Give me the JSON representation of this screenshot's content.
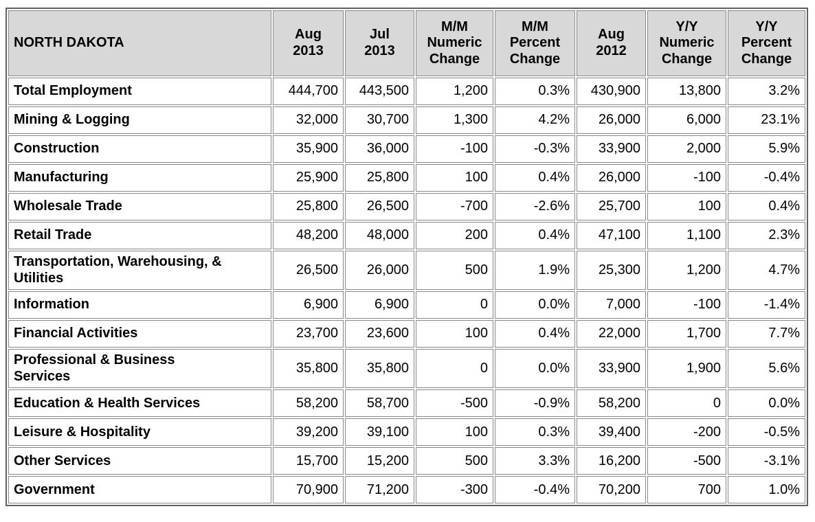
{
  "title": "NORTH DAKOTA",
  "colors": {
    "header_bg": "#d8d8d8",
    "cell_border": "#878787",
    "outer_border": "#606060",
    "row_bg": "#ffffff",
    "text": "#000000"
  },
  "header": {
    "cells": [
      "NORTH DAKOTA",
      "Aug\n2013",
      "Jul\n2013",
      "M/M\nNumeric\nChange",
      "M/M\nPercent\nChange",
      "Aug\n2012",
      "Y/Y\nNumeric\nChange",
      "Y/Y\nPercent\nChange"
    ]
  },
  "chart_data": {
    "type": "table",
    "title": "NORTH DAKOTA",
    "columns": [
      "NORTH DAKOTA",
      "Aug 2013",
      "Jul 2013",
      "M/M Numeric Change",
      "M/M Percent Change",
      "Aug 2012",
      "Y/Y Numeric Change",
      "Y/Y Percent Change"
    ],
    "rows": [
      [
        "Total Employment",
        "444,700",
        "443,500",
        "1,200",
        "0.3%",
        "430,900",
        "13,800",
        "3.2%"
      ],
      [
        "Mining & Logging",
        "32,000",
        "30,700",
        "1,300",
        "4.2%",
        "26,000",
        "6,000",
        "23.1%"
      ],
      [
        "Construction",
        "35,900",
        "36,000",
        "-100",
        "-0.3%",
        "33,900",
        "2,000",
        "5.9%"
      ],
      [
        "Manufacturing",
        "25,900",
        "25,800",
        "100",
        "0.4%",
        "26,000",
        "-100",
        "-0.4%"
      ],
      [
        "Wholesale Trade",
        "25,800",
        "26,500",
        "-700",
        "-2.6%",
        "25,700",
        "100",
        "0.4%"
      ],
      [
        "Retail Trade",
        "48,200",
        "48,000",
        "200",
        "0.4%",
        "47,100",
        "1,100",
        "2.3%"
      ],
      [
        "Transportation, Warehousing, &\nUtilities",
        "26,500",
        "26,000",
        "500",
        "1.9%",
        "25,300",
        "1,200",
        "4.7%"
      ],
      [
        "Information",
        "6,900",
        "6,900",
        "0",
        "0.0%",
        "7,000",
        "-100",
        "-1.4%"
      ],
      [
        "Financial Activities",
        "23,700",
        "23,600",
        "100",
        "0.4%",
        "22,000",
        "1,700",
        "7.7%"
      ],
      [
        "Professional & Business\nServices",
        "35,800",
        "35,800",
        "0",
        "0.0%",
        "33,900",
        "1,900",
        "5.6%"
      ],
      [
        "Education & Health Services",
        "58,200",
        "58,700",
        "-500",
        "-0.9%",
        "58,200",
        "0",
        "0.0%"
      ],
      [
        "Leisure & Hospitality",
        "39,200",
        "39,100",
        "100",
        "0.3%",
        "39,400",
        "-200",
        "-0.5%"
      ],
      [
        "Other Services",
        "15,700",
        "15,200",
        "500",
        "3.3%",
        "16,200",
        "-500",
        "-3.1%"
      ],
      [
        "Government",
        "70,900",
        "71,200",
        "-300",
        "-0.4%",
        "70,200",
        "700",
        "1.0%"
      ]
    ]
  }
}
